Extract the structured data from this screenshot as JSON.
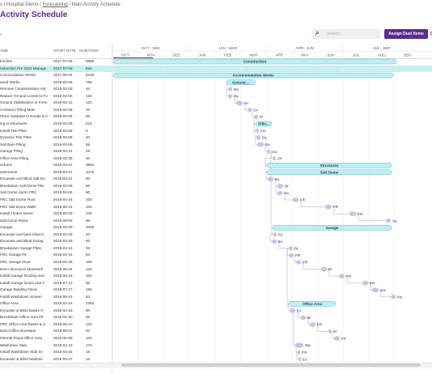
{
  "breadcrumb": {
    "part1": "s / Hospital Demo / ",
    "forecasting": "Forecasting",
    "part3": " / Main Activity Schedule"
  },
  "page_title": "Activity Schedule",
  "search": {
    "placeholder": "Search..."
  },
  "assign_button": "Assign Dust Items",
  "columns": {
    "name": "AME",
    "start": "START DATE",
    "duration": "DURATION"
  },
  "timeline": {
    "quarters": [
      "OCT - DEC",
      "JAN - MAR",
      "APR - JUN",
      "JUL - SEP"
    ],
    "months": [
      "OCT",
      "NOV",
      "DEC",
      "JAN",
      "FEB",
      "MAR",
      "APR",
      "MAY",
      "JUN",
      "JUL",
      "AUG",
      "SEP"
    ]
  },
  "rows": [
    {
      "name": "truction",
      "start": "2017-07-06",
      "dur": "9888"
    },
    {
      "name": "nstruction Pre Start Manage",
      "start": "2017-07-06",
      "dur": "584"
    },
    {
      "name": "ccommodation Works",
      "start": "2017-08-24",
      "dur": "8440"
    },
    {
      "name": "ound Works",
      "start": "2018-02-05",
      "dur": "768"
    },
    {
      "name": "Remove Contamination Hot",
      "start": "2018-02-05",
      "dur": "40"
    },
    {
      "name": "Reduce Ground Levels to Fo",
      "start": "2018-02-05",
      "dur": "120"
    },
    {
      "name": "Ground Stabilisation to Form",
      "start": "2018-02-12",
      "dur": "120"
    },
    {
      "name": "Construct Piling Mats",
      "start": "2018-02-26",
      "dur": "40"
    },
    {
      "name": "Place Subbase to Roads & C",
      "start": "2018-03-05",
      "dur": "96"
    },
    {
      "name": "ing to Structures",
      "start": "2018-03-05",
      "dur": "615"
    },
    {
      "name": "Install Test Piles",
      "start": "2018-03-05",
      "dur": "8"
    },
    {
      "name": "Dynamic Test Piles",
      "start": "2018-03-06",
      "dur": "40"
    },
    {
      "name": "Salt Barn Piling",
      "start": "2018-03-06",
      "dur": "88"
    },
    {
      "name": "Garage Piling",
      "start": "2018-03-21",
      "dur": "48"
    },
    {
      "name": "Office Area Piling",
      "start": "2018-03-29",
      "dur": "40"
    },
    {
      "name": "uctures",
      "start": "2018-03-21",
      "dur": "3581"
    },
    {
      "name": "Salt Dome",
      "start": "2018-03-21",
      "dur": "3475"
    },
    {
      "name": "Excavate and Blind Salt Do",
      "start": "2018-03-21",
      "dur": "80"
    },
    {
      "name": "Breakdown Salt Dome Pile",
      "start": "2018-04-06",
      "dur": "96"
    },
    {
      "name": "Salt Dome Apron FRC",
      "start": "2018-04-06",
      "dur": "80"
    },
    {
      "name": "FRC Salt Dome Floor",
      "start": "2018-04-24",
      "dur": "200"
    },
    {
      "name": "FRC Salt Dome Walls",
      "start": "2018-05-31",
      "dur": "160"
    },
    {
      "name": "Install Timber Dome",
      "start": "2018-06-28",
      "dur": "240"
    },
    {
      "name": "Salt Dome Fitout",
      "start": "2018-08-09",
      "dur": "96"
    },
    {
      "name": "Garage",
      "start": "2018-03-29",
      "dur": "3400"
    },
    {
      "name": "Excavate and back blind G",
      "start": "2018-03-29",
      "dur": "40"
    },
    {
      "name": "Excavate and Blind Garag",
      "start": "2018-03-28",
      "dur": "80"
    },
    {
      "name": "Breakdown Garage Piles",
      "start": "2018-04-16",
      "dur": "36"
    },
    {
      "name": "FRC Garage Pit",
      "start": "2018-04-16",
      "dur": "64"
    },
    {
      "name": "FRC Garage Floor",
      "start": "2018-04-25",
      "dur": "160"
    },
    {
      "name": "Erect Structural Steelwork",
      "start": "2018-05-24",
      "dur": "120"
    },
    {
      "name": "Install Garage Roofing and",
      "start": "2018-06-15",
      "dur": "160"
    },
    {
      "name": "Install Garage Doors and F",
      "start": "2018-07-13",
      "dur": "80"
    },
    {
      "name": "Garage Building Fitout",
      "start": "2018-07-27",
      "dur": "160"
    },
    {
      "name": "Install Washdown Screen",
      "start": "2018-08-16",
      "dur": "40"
    },
    {
      "name": "Office Area",
      "start": "2018-04-16",
      "dur": "1392"
    },
    {
      "name": "Excavate & Blind Bases O",
      "start": "2018-04-16",
      "dur": "80"
    },
    {
      "name": "Breakdown Office Area Pil",
      "start": "2018-04-30",
      "dur": "56"
    },
    {
      "name": "FRC Office Area Bases & S",
      "start": "2018-05-10",
      "dur": "120"
    },
    {
      "name": "Erect Office Envelope",
      "start": "2018-06-01",
      "dur": "40"
    },
    {
      "name": "Internal Fitout Office Area",
      "start": "2018-06-08",
      "dur": "120"
    },
    {
      "name": "Washdown Slab",
      "start": "2018-04-23",
      "dur": "176"
    },
    {
      "name": "Install Washdown Slab Dr",
      "start": "2018-04-25",
      "dur": "16"
    },
    {
      "name": "Excavate & Blind Washdo",
      "start": "2018-04-27",
      "dur": "16"
    }
  ],
  "bars": [
    {
      "label": "Construction",
      "row": 0
    },
    {
      "label": "Accommodation Works",
      "row": 2
    },
    {
      "label": "Ground ...",
      "row": 3
    },
    {
      "label": "Re",
      "row": 4
    },
    {
      "label": "Re",
      "row": 5
    },
    {
      "label": "Gr",
      "row": 6
    },
    {
      "label": "Co",
      "row": 7
    },
    {
      "label": "Pl",
      "row": 8
    },
    {
      "label": "Pilin...",
      "row": 9
    },
    {
      "label": "Ins",
      "row": 10
    },
    {
      "label": "Dy",
      "row": 11
    },
    {
      "label": "Sa",
      "row": 12
    },
    {
      "label": "Ga",
      "row": 13
    },
    {
      "label": "Of",
      "row": 14
    },
    {
      "label": "Structures",
      "row": 15
    },
    {
      "label": "Salt Dome",
      "row": 16
    },
    {
      "label": "Ex",
      "row": 17
    },
    {
      "label": "Br",
      "row": 18
    },
    {
      "label": "Sa",
      "row": 19
    },
    {
      "label": "FR",
      "row": 20
    },
    {
      "label": "FR",
      "row": 21
    },
    {
      "label": "Ins",
      "row": 22
    },
    {
      "label": "Sa",
      "row": 23
    },
    {
      "label": "Garage",
      "row": 24
    },
    {
      "label": "Ex",
      "row": 25
    },
    {
      "label": "Ex",
      "row": 26
    },
    {
      "label": "Br",
      "row": 27
    },
    {
      "label": "FR",
      "row": 28
    },
    {
      "label": "FR",
      "row": 29
    },
    {
      "label": "Er",
      "row": 30
    },
    {
      "label": "Ins",
      "row": 31
    },
    {
      "label": "Ins",
      "row": 32
    },
    {
      "label": "Ga",
      "row": 33
    },
    {
      "label": "Ins",
      "row": 34
    },
    {
      "label": "Office Area",
      "row": 35
    },
    {
      "label": "Ex",
      "row": 36
    },
    {
      "label": "Br",
      "row": 37
    },
    {
      "label": "FR",
      "row": 38
    },
    {
      "label": "Er",
      "row": 39
    },
    {
      "label": "Int",
      "row": 40
    },
    {
      "label": "Wa",
      "row": 41
    },
    {
      "label": "Ins",
      "row": 42
    },
    {
      "label": "Ex",
      "row": 43
    }
  ],
  "colors": {
    "accent": "#5b2d8c",
    "summary_bar": "#bfeff1",
    "summary_border": "#5fb8c0",
    "task_marker": "#c7c3e8",
    "selected_row": "#c6efef"
  }
}
